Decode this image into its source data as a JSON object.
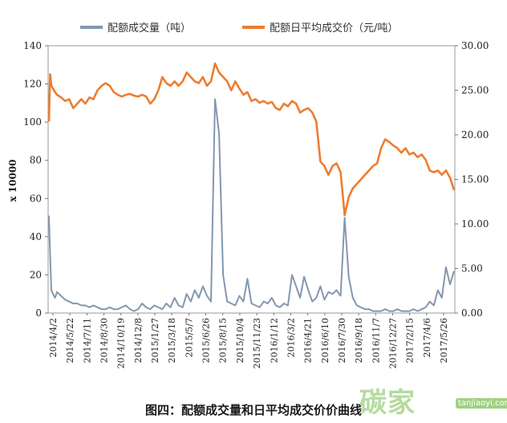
{
  "chart_data": {
    "type": "line",
    "legend": {
      "placement": "top",
      "entries": [
        {
          "label": "配额成交量（吨）",
          "color": "#8497b0",
          "axis": "left"
        },
        {
          "label": "配额日平均成交价（元/吨）",
          "color": "#ed7d31",
          "axis": "right"
        }
      ]
    },
    "ylabel": "x 10000",
    "ylim": [
      0,
      140
    ],
    "y_ticks": [
      "0",
      "20",
      "40",
      "60",
      "80",
      "100",
      "120",
      "140"
    ],
    "y2lim": [
      0,
      30
    ],
    "y2_ticks": [
      "0.00",
      "5.00",
      "10.00",
      "15.00",
      "20.00",
      "25.00",
      "30.00"
    ],
    "x_tick_labels": [
      "2014/4/2",
      "2014/5/22",
      "2014/7/11",
      "2014/8/30",
      "2014/10/19",
      "2014/12/8",
      "2015/1/27",
      "2015/3/18",
      "2015/5/7",
      "2015/6/26",
      "2015/8/15",
      "2015/10/4",
      "2015/11/23",
      "2016/1/12",
      "2016/3/2",
      "2016/4/21",
      "2016/6/10",
      "2016/7/30",
      "2016/9/18",
      "2016/11/7",
      "2016/12/27",
      "2017/2/15",
      "2017/4/6",
      "2017/5/26"
    ],
    "grid": false,
    "series": [
      {
        "name": "配额成交量（吨）",
        "axis": "left",
        "color": "#8497b0",
        "x": [
          0,
          0.3,
          0.6,
          1,
          1.5,
          2,
          3,
          4,
          5,
          6,
          7,
          8,
          9,
          10,
          11,
          12,
          13,
          14,
          15,
          16,
          17,
          18,
          19,
          20,
          21,
          22,
          23,
          24,
          25,
          26,
          27,
          28,
          29,
          30,
          31,
          32,
          33,
          34,
          35,
          36,
          37,
          38,
          39,
          40,
          41,
          42,
          43,
          44,
          45,
          46,
          47,
          48,
          49,
          50,
          51,
          52,
          53,
          54,
          55,
          56,
          57,
          58,
          59,
          60,
          61,
          62,
          63,
          64,
          65,
          66,
          67,
          68,
          69,
          70,
          71,
          72,
          73,
          74,
          75,
          76,
          77,
          78,
          79,
          80,
          81,
          82,
          83,
          84,
          85,
          86,
          87,
          88,
          89,
          90,
          91,
          92,
          93,
          94,
          95,
          96,
          97,
          98,
          99,
          100
        ],
        "values": [
          51,
          30,
          12,
          10,
          8,
          11,
          9,
          7,
          6,
          5,
          5,
          4,
          4,
          3,
          4,
          3,
          2,
          2,
          3,
          2,
          2,
          3,
          4,
          2,
          1,
          2,
          5,
          3,
          2,
          4,
          3,
          2,
          5,
          3,
          8,
          4,
          3,
          10,
          6,
          12,
          8,
          14,
          9,
          6,
          112,
          94,
          20,
          6,
          5,
          4,
          9,
          6,
          18,
          5,
          4,
          3,
          6,
          5,
          8,
          4,
          3,
          5,
          4,
          20,
          14,
          8,
          19,
          12,
          6,
          8,
          14,
          7,
          11,
          10,
          12,
          9,
          50,
          19,
          8,
          4,
          3,
          2,
          2,
          1,
          1,
          1,
          2,
          1,
          1,
          2,
          1,
          1,
          1,
          2,
          1,
          2,
          3,
          6,
          4,
          12,
          8,
          24,
          15,
          22
        ]
      },
      {
        "name": "配额日平均成交价（元/吨）",
        "axis": "right",
        "color": "#ed7d31",
        "x": [
          0,
          0.3,
          0.6,
          1,
          1.5,
          2,
          3,
          4,
          5,
          6,
          7,
          8,
          9,
          10,
          11,
          12,
          13,
          14,
          15,
          16,
          17,
          18,
          19,
          20,
          21,
          22,
          23,
          24,
          25,
          26,
          27,
          28,
          29,
          30,
          31,
          32,
          33,
          34,
          35,
          36,
          37,
          38,
          39,
          40,
          41,
          42,
          43,
          44,
          45,
          46,
          47,
          48,
          49,
          50,
          51,
          52,
          53,
          54,
          55,
          56,
          57,
          58,
          59,
          60,
          61,
          62,
          63,
          64,
          65,
          66,
          67,
          68,
          69,
          70,
          71,
          72,
          73,
          74,
          75,
          76,
          77,
          78,
          79,
          80,
          81,
          82,
          83,
          84,
          85,
          86,
          87,
          88,
          89,
          90,
          91,
          92,
          93,
          94,
          95,
          96,
          97,
          98,
          99,
          100
        ],
        "values": [
          21.5,
          26.8,
          25.5,
          25.2,
          24.8,
          24.5,
          24.2,
          23.8,
          24.0,
          23.0,
          23.5,
          24.0,
          23.5,
          24.2,
          24.0,
          25.0,
          25.5,
          25.8,
          25.5,
          24.8,
          24.5,
          24.3,
          24.5,
          24.6,
          24.4,
          24.3,
          24.5,
          24.3,
          23.5,
          24.0,
          25.0,
          26.5,
          25.8,
          25.5,
          26.0,
          25.5,
          26.0,
          27.0,
          26.5,
          26.0,
          25.8,
          26.5,
          25.5,
          26.0,
          28.0,
          27.0,
          26.5,
          26.0,
          25.0,
          26.0,
          25.2,
          24.5,
          24.8,
          23.8,
          24.0,
          23.6,
          23.8,
          23.5,
          23.7,
          23.0,
          22.8,
          23.5,
          23.2,
          23.8,
          23.5,
          22.5,
          22.8,
          23.0,
          22.5,
          21.5,
          17.0,
          16.5,
          15.5,
          16.5,
          16.8,
          15.8,
          11.0,
          13.0,
          14.0,
          14.5,
          15.0,
          15.5,
          16.0,
          16.5,
          16.8,
          18.5,
          19.5,
          19.2,
          18.8,
          18.5,
          18.0,
          18.5,
          17.8,
          18.0,
          17.5,
          17.8,
          17.2,
          16.0,
          15.8,
          16.0,
          15.5,
          16.0,
          15.2,
          13.8
        ]
      }
    ]
  },
  "caption": "图四：配额成交量和日平均成交价价曲线",
  "watermark": {
    "text": "碳家",
    "domain": "tanjiaoyi.com"
  }
}
